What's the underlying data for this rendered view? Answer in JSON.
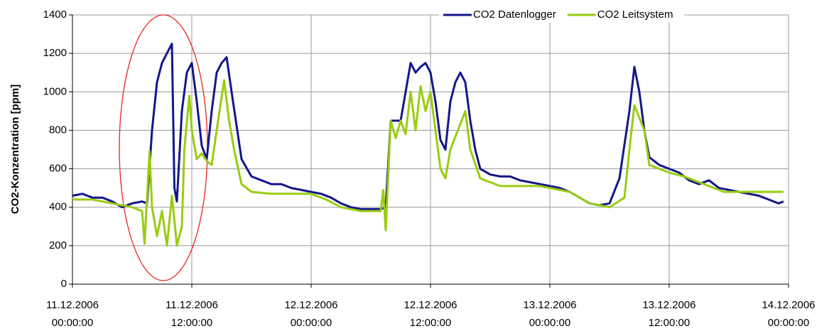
{
  "chart_data": {
    "type": "line",
    "y_label": "CO2-Konzentration [ppm]",
    "ylim": [
      0,
      1400
    ],
    "yticks": [
      0,
      200,
      400,
      600,
      800,
      1000,
      1200,
      1400
    ],
    "xlim": [
      "2006-12-11T00:00",
      "2006-12-14T00:00"
    ],
    "xticks": [
      {
        "value": "2006-12-11T00:00",
        "label": "11.12.2006\n00:00:00"
      },
      {
        "value": "2006-12-11T12:00",
        "label": "11.12.2006\n12:00:00"
      },
      {
        "value": "2006-12-12T00:00",
        "label": "12.12.2006\n00:00:00"
      },
      {
        "value": "2006-12-12T12:00",
        "label": "12.12.2006\n12:00:00"
      },
      {
        "value": "2006-12-13T00:00",
        "label": "13.12.2006\n00:00:00"
      },
      {
        "value": "2006-12-13T12:00",
        "label": "13.12.2006\n12:00:00"
      },
      {
        "value": "2006-12-14T00:00",
        "label": "14.12.2006\n00:00:00"
      }
    ],
    "grid": true,
    "legend": "top-right",
    "series": [
      {
        "name": "CO2 Datenlogger",
        "color": "#14168a",
        "x": [
          "2006-12-11T00:00",
          "2006-12-11T01:00",
          "2006-12-11T02:00",
          "2006-12-11T03:00",
          "2006-12-11T04:00",
          "2006-12-11T05:00",
          "2006-12-11T06:00",
          "2006-12-11T07:00",
          "2006-12-11T07:30",
          "2006-12-11T08:00",
          "2006-12-11T08:30",
          "2006-12-11T09:00",
          "2006-12-11T09:30",
          "2006-12-11T10:00",
          "2006-12-11T10:15",
          "2006-12-11T10:30",
          "2006-12-11T11:00",
          "2006-12-11T11:30",
          "2006-12-11T12:00",
          "2006-12-11T12:30",
          "2006-12-11T13:00",
          "2006-12-11T13:30",
          "2006-12-11T14:00",
          "2006-12-11T14:30",
          "2006-12-11T15:00",
          "2006-12-11T15:30",
          "2006-12-11T16:00",
          "2006-12-11T17:00",
          "2006-12-11T18:00",
          "2006-12-11T19:00",
          "2006-12-11T20:00",
          "2006-12-11T21:00",
          "2006-12-11T22:00",
          "2006-12-11T23:00",
          "2006-12-12T00:00",
          "2006-12-12T01:00",
          "2006-12-12T02:00",
          "2006-12-12T03:00",
          "2006-12-12T04:00",
          "2006-12-12T05:00",
          "2006-12-12T06:00",
          "2006-12-12T07:00",
          "2006-12-12T07:30",
          "2006-12-12T08:00",
          "2006-12-12T09:00",
          "2006-12-12T10:00",
          "2006-12-12T10:30",
          "2006-12-12T11:00",
          "2006-12-12T11:30",
          "2006-12-12T12:00",
          "2006-12-12T12:30",
          "2006-12-12T13:00",
          "2006-12-12T13:30",
          "2006-12-12T14:00",
          "2006-12-12T14:30",
          "2006-12-12T15:00",
          "2006-12-12T15:30",
          "2006-12-12T16:00",
          "2006-12-12T16:30",
          "2006-12-12T17:00",
          "2006-12-12T18:00",
          "2006-12-12T19:00",
          "2006-12-12T20:00",
          "2006-12-12T21:00",
          "2006-12-12T22:00",
          "2006-12-12T23:00",
          "2006-12-13T00:00",
          "2006-12-13T01:00",
          "2006-12-13T02:00",
          "2006-12-13T03:00",
          "2006-12-13T04:00",
          "2006-12-13T05:00",
          "2006-12-13T06:00",
          "2006-12-13T07:00",
          "2006-12-13T08:00",
          "2006-12-13T08:30",
          "2006-12-13T09:00",
          "2006-12-13T09:30",
          "2006-12-13T10:00",
          "2006-12-13T11:00",
          "2006-12-13T12:00",
          "2006-12-13T13:00",
          "2006-12-13T14:00",
          "2006-12-13T15:00",
          "2006-12-13T16:00",
          "2006-12-13T17:00",
          "2006-12-13T18:00",
          "2006-12-13T19:00",
          "2006-12-13T20:00",
          "2006-12-13T21:00",
          "2006-12-13T22:00",
          "2006-12-13T23:00",
          "2006-12-13T23:30"
        ],
        "values": [
          460,
          470,
          450,
          450,
          430,
          400,
          420,
          430,
          420,
          800,
          1050,
          1150,
          1200,
          1250,
          500,
          430,
          900,
          1100,
          1150,
          950,
          720,
          650,
          900,
          1100,
          1150,
          1180,
          1000,
          650,
          560,
          540,
          520,
          520,
          500,
          490,
          480,
          470,
          450,
          420,
          400,
          390,
          390,
          390,
          400,
          850,
          850,
          1150,
          1100,
          1130,
          1150,
          1100,
          950,
          750,
          700,
          950,
          1050,
          1100,
          1050,
          850,
          700,
          600,
          570,
          560,
          560,
          540,
          530,
          520,
          510,
          500,
          480,
          450,
          420,
          410,
          420,
          550,
          900,
          1130,
          1000,
          800,
          660,
          620,
          600,
          580,
          540,
          520,
          540,
          500,
          490,
          480,
          470,
          460,
          440,
          420,
          430
        ]
      },
      {
        "name": "CO2 Leitsystem",
        "color": "#99cc11",
        "x": [
          "2006-12-11T00:00",
          "2006-12-11T02:00",
          "2006-12-11T04:00",
          "2006-12-11T06:00",
          "2006-12-11T07:00",
          "2006-12-11T07:15",
          "2006-12-11T07:45",
          "2006-12-11T08:00",
          "2006-12-11T08:30",
          "2006-12-11T09:00",
          "2006-12-11T09:30",
          "2006-12-11T10:00",
          "2006-12-11T10:30",
          "2006-12-11T11:00",
          "2006-12-11T11:15",
          "2006-12-11T11:45",
          "2006-12-11T12:00",
          "2006-12-11T12:30",
          "2006-12-11T13:00",
          "2006-12-11T13:30",
          "2006-12-11T14:00",
          "2006-12-11T14:30",
          "2006-12-11T15:15",
          "2006-12-11T15:45",
          "2006-12-11T16:15",
          "2006-12-11T17:00",
          "2006-12-11T18:00",
          "2006-12-11T20:00",
          "2006-12-12T00:00",
          "2006-12-12T01:30",
          "2006-12-12T03:00",
          "2006-12-12T05:00",
          "2006-12-12T07:00",
          "2006-12-12T07:15",
          "2006-12-12T07:30",
          "2006-12-12T08:00",
          "2006-12-12T08:30",
          "2006-12-12T09:00",
          "2006-12-12T09:30",
          "2006-12-12T10:00",
          "2006-12-12T10:30",
          "2006-12-12T11:00",
          "2006-12-12T11:30",
          "2006-12-12T12:00",
          "2006-12-12T12:30",
          "2006-12-12T13:00",
          "2006-12-12T13:30",
          "2006-12-12T14:00",
          "2006-12-12T15:30",
          "2006-12-12T16:00",
          "2006-12-12T17:00",
          "2006-12-12T19:00",
          "2006-12-12T23:00",
          "2006-12-13T02:00",
          "2006-12-13T04:00",
          "2006-12-13T06:00",
          "2006-12-13T07:30",
          "2006-12-13T08:00",
          "2006-12-13T08:30",
          "2006-12-13T09:30",
          "2006-12-13T10:00",
          "2006-12-13T12:00",
          "2006-12-13T13:30",
          "2006-12-13T15:30",
          "2006-12-13T17:30",
          "2006-12-13T23:30"
        ],
        "values": [
          440,
          440,
          420,
          400,
          380,
          210,
          690,
          400,
          250,
          380,
          200,
          460,
          200,
          300,
          700,
          980,
          800,
          650,
          680,
          640,
          620,
          800,
          1060,
          850,
          700,
          520,
          480,
          470,
          470,
          440,
          400,
          380,
          380,
          490,
          280,
          850,
          760,
          850,
          780,
          1000,
          800,
          1030,
          900,
          1000,
          800,
          600,
          550,
          700,
          900,
          700,
          550,
          510,
          510,
          480,
          420,
          400,
          450,
          700,
          930,
          800,
          620,
          580,
          560,
          520,
          480,
          480
        ]
      }
    ]
  }
}
